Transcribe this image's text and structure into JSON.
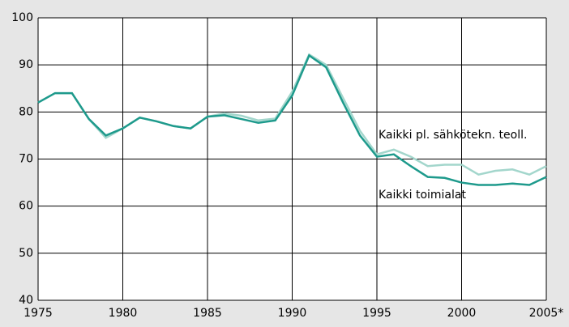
{
  "chart_data": {
    "type": "line",
    "x": [
      1975,
      1976,
      1977,
      1978,
      1979,
      1980,
      1981,
      1982,
      1983,
      1984,
      1985,
      1986,
      1987,
      1988,
      1989,
      1990,
      1991,
      1992,
      1993,
      1994,
      1995,
      1996,
      1997,
      1998,
      1999,
      2000,
      2001,
      2002,
      2003,
      2004,
      2005
    ],
    "series": [
      {
        "name": "Kaikki pl. sähkötekn. teoll.",
        "color": "#a3d6cc",
        "values": [
          82,
          84,
          84,
          78.5,
          74.5,
          76.5,
          78.8,
          78,
          77,
          76.5,
          79,
          79.7,
          79.2,
          78.2,
          78.6,
          84.3,
          92.2,
          90,
          83,
          76,
          71,
          72,
          70.5,
          68.5,
          68.8,
          68.8,
          66.7,
          67.5,
          67.8,
          66.7,
          68.5
        ]
      },
      {
        "name": "Kaikki toimialat",
        "color": "#1e9a8c",
        "values": [
          82,
          84,
          84,
          78.5,
          75,
          76.5,
          78.8,
          78,
          77,
          76.5,
          79,
          79.3,
          78.5,
          77.7,
          78.2,
          83.5,
          92,
          89.5,
          82,
          75,
          70.5,
          71,
          68.5,
          66.2,
          66,
          65,
          64.5,
          64.5,
          64.8,
          64.5,
          66.2
        ]
      }
    ],
    "xlim": [
      1975,
      2005
    ],
    "xticks": [
      1975,
      1980,
      1985,
      1990,
      1995,
      2000,
      {
        "value": 2005,
        "label": "2005*"
      }
    ],
    "ylim": [
      40,
      100
    ],
    "yticks": [
      40,
      50,
      60,
      70,
      80,
      90,
      100
    ],
    "grid": true
  }
}
